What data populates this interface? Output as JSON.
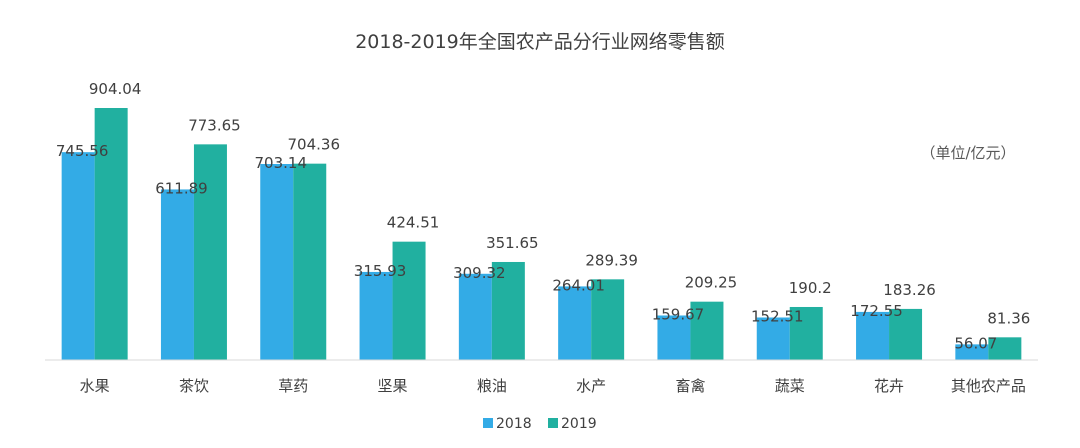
{
  "chart_data": {
    "type": "bar",
    "title": "2018-2019年全国农产品分行业网络零售额",
    "unit_label": "（单位/亿元）",
    "categories": [
      "水果",
      "茶饮",
      "草药",
      "坚果",
      "粮油",
      "水产",
      "畜禽",
      "蔬菜",
      "花卉",
      "其他农产品"
    ],
    "series": [
      {
        "name": "2018",
        "color": "#33abe6",
        "values": [
          745.56,
          611.89,
          703.14,
          315.93,
          309.32,
          264.01,
          159.67,
          152.51,
          172.55,
          56.07
        ]
      },
      {
        "name": "2019",
        "color": "#21b0a0",
        "values": [
          904.04,
          773.65,
          704.36,
          424.51,
          351.65,
          289.39,
          209.25,
          190.2,
          183.26,
          81.36
        ]
      }
    ],
    "value_labels": [
      [
        "745.56",
        "611.89",
        "703.14",
        "315.93",
        "309.32",
        "264.01",
        "159.67",
        "152.51",
        "172.55",
        "56.07"
      ],
      [
        "904.04",
        "773.65",
        "704.36",
        "424.51",
        "351.65",
        "289.39",
        "209.25",
        "190.2",
        "183.26",
        "81.36"
      ]
    ],
    "ylim": [
      0,
      904.04
    ],
    "grid": false,
    "legend_position": "bottom"
  }
}
